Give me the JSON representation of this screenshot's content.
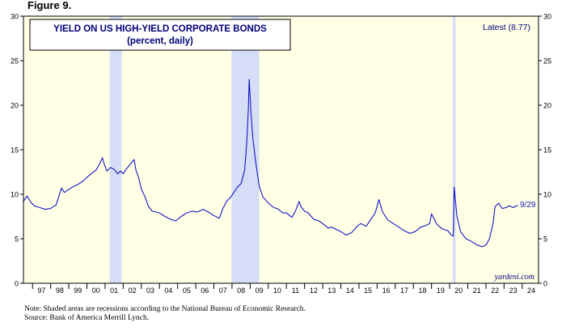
{
  "figure_label": "Figure 9.",
  "note": "Note: Shaded areas are recessions according to the National Bureau of Economic Research.",
  "source": "Source: Bank of America Merrill Lynch.",
  "colors": {
    "plot_bg": "#FFFFE6",
    "recession": "#D6DEF7",
    "line": "#1515C8",
    "title_text": "#00007A",
    "axis": "#000000"
  },
  "chart_data": {
    "type": "line",
    "title": "YIELD ON US HIGH-YIELD CORPORATE BONDS",
    "subtitle": "(percent, daily)",
    "latest_label": "Latest (8.77)",
    "end_label": "9/29",
    "watermark": "yardeni.com",
    "ylim": [
      0,
      30
    ],
    "xlim": [
      1996.5,
      2024.9
    ],
    "yticks": [
      0,
      5,
      10,
      15,
      20,
      25,
      30
    ],
    "year_labels": [
      "97",
      "98",
      "99",
      "00",
      "01",
      "02",
      "03",
      "04",
      "05",
      "06",
      "07",
      "08",
      "09",
      "10",
      "11",
      "12",
      "13",
      "14",
      "15",
      "16",
      "17",
      "18",
      "19",
      "20",
      "21",
      "22",
      "23",
      "24"
    ],
    "recessions": [
      [
        2001.25,
        2001.92
      ],
      [
        2007.97,
        2009.5
      ],
      [
        2020.17,
        2020.33
      ]
    ],
    "grid": false,
    "series": [
      {
        "x": [
          1996.5,
          1996.7,
          1996.9,
          1997.1,
          1997.4,
          1997.7,
          1998.0,
          1998.3,
          1998.6,
          1998.75,
          1998.9,
          1999.2,
          1999.5,
          1999.8,
          2000.0,
          2000.3,
          2000.5,
          2000.7,
          2000.85,
          2000.95,
          2001.1,
          2001.3,
          2001.5,
          2001.7,
          2001.85,
          2002.0,
          2002.2,
          2002.4,
          2002.6,
          2002.7,
          2002.85,
          2003.0,
          2003.2,
          2003.4,
          2003.6,
          2003.8,
          2004.0,
          2004.3,
          2004.6,
          2004.9,
          2005.2,
          2005.5,
          2005.8,
          2006.1,
          2006.4,
          2006.7,
          2007.0,
          2007.3,
          2007.5,
          2007.7,
          2007.9,
          2008.1,
          2008.3,
          2008.5,
          2008.7,
          2008.82,
          2008.9,
          2008.95,
          2009.05,
          2009.15,
          2009.3,
          2009.5,
          2009.7,
          2010.0,
          2010.3,
          2010.5,
          2010.8,
          2011.0,
          2011.3,
          2011.5,
          2011.7,
          2011.8,
          2012.0,
          2012.2,
          2012.5,
          2012.8,
          2013.0,
          2013.3,
          2013.5,
          2013.8,
          2014.0,
          2014.3,
          2014.6,
          2014.9,
          2015.1,
          2015.4,
          2015.7,
          2015.9,
          2016.1,
          2016.3,
          2016.6,
          2016.9,
          2017.2,
          2017.5,
          2017.8,
          2018.1,
          2018.4,
          2018.7,
          2018.9,
          2019.0,
          2019.3,
          2019.6,
          2019.9,
          2020.1,
          2020.2,
          2020.25,
          2020.4,
          2020.6,
          2020.9,
          2021.2,
          2021.5,
          2021.8,
          2022.0,
          2022.2,
          2022.4,
          2022.5,
          2022.7,
          2022.9,
          2023.1,
          2023.3,
          2023.5,
          2023.75
        ],
        "y": [
          9.2,
          9.8,
          9.1,
          8.7,
          8.5,
          8.3,
          8.4,
          8.8,
          10.7,
          10.2,
          10.4,
          10.8,
          11.1,
          11.5,
          11.9,
          12.4,
          12.7,
          13.4,
          14.1,
          13.4,
          12.6,
          13.0,
          12.8,
          12.3,
          12.6,
          12.3,
          12.9,
          13.4,
          13.9,
          12.7,
          11.9,
          10.6,
          9.7,
          8.6,
          8.1,
          8.0,
          7.9,
          7.5,
          7.2,
          7.0,
          7.5,
          7.9,
          8.1,
          8.0,
          8.3,
          8.0,
          7.6,
          7.3,
          8.4,
          9.2,
          9.6,
          10.2,
          10.8,
          11.2,
          12.7,
          16.0,
          19.5,
          22.9,
          19.0,
          16.3,
          13.7,
          10.9,
          9.7,
          9.0,
          8.5,
          8.4,
          7.9,
          7.9,
          7.4,
          8.1,
          9.2,
          8.6,
          8.1,
          7.9,
          7.2,
          7.0,
          6.7,
          6.2,
          6.3,
          6.0,
          5.8,
          5.4,
          5.7,
          6.4,
          6.7,
          6.4,
          7.3,
          7.9,
          9.4,
          8.0,
          7.1,
          6.7,
          6.3,
          5.9,
          5.6,
          5.8,
          6.3,
          6.5,
          6.7,
          7.8,
          6.6,
          6.1,
          5.9,
          5.4,
          5.3,
          10.8,
          7.5,
          5.8,
          5.0,
          4.7,
          4.3,
          4.1,
          4.3,
          5.0,
          6.8,
          8.6,
          9.0,
          8.4,
          8.5,
          8.7,
          8.5,
          8.77
        ]
      }
    ]
  }
}
